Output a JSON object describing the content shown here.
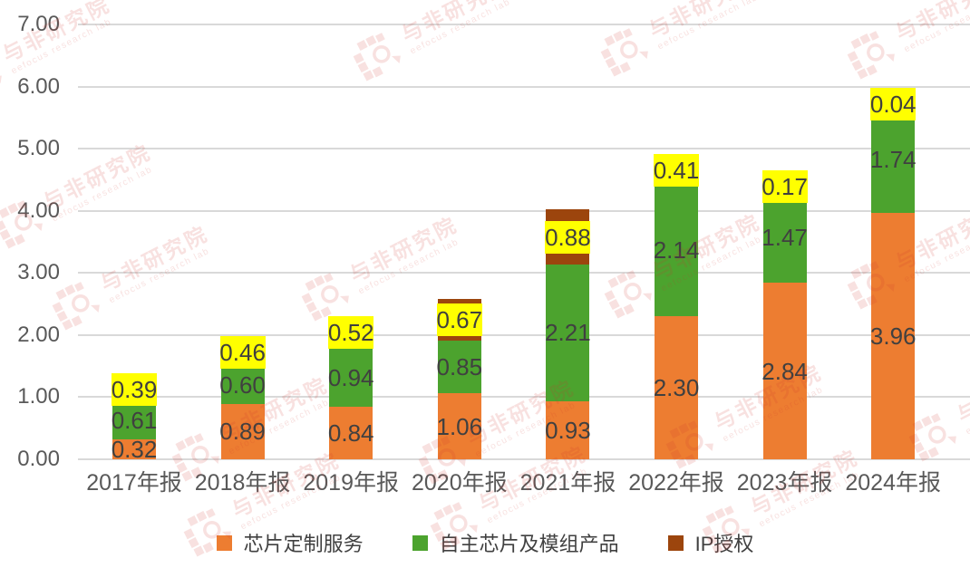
{
  "chart_data": {
    "type": "bar",
    "stacked": true,
    "title": "",
    "xlabel": "",
    "ylabel": "",
    "categories": [
      "2017年报",
      "2018年报",
      "2019年报",
      "2020年报",
      "2021年报",
      "2022年报",
      "2023年报",
      "2024年报"
    ],
    "series": [
      {
        "name": "芯片定制服务",
        "color": "#ED7D31",
        "label_style": "plain",
        "values": [
          0.32,
          0.89,
          0.84,
          1.06,
          0.93,
          2.3,
          2.84,
          3.96
        ]
      },
      {
        "name": "自主芯片及模组产品",
        "color": "#4CA32E",
        "label_style": "plain",
        "values": [
          0.61,
          0.6,
          0.94,
          0.85,
          2.21,
          2.14,
          1.47,
          1.74
        ]
      },
      {
        "name": "IP授权",
        "color": "#9C450D",
        "label_style": "highlight",
        "label_bg": "#FFFF00",
        "values": [
          0.39,
          0.46,
          0.52,
          0.67,
          0.88,
          0.41,
          0.17,
          0.04
        ]
      }
    ],
    "ylim": [
      0,
      7
    ],
    "yticks": [
      "0.00",
      "1.00",
      "2.00",
      "3.00",
      "4.00",
      "5.00",
      "6.00",
      "7.00"
    ],
    "value_decimals": 2,
    "grid": "horizontal",
    "legend_position": "bottom"
  },
  "watermark": {
    "brand": "与非研究院",
    "subtitle": "eefocus research lab"
  },
  "colors": {
    "background": "#FFFFFF",
    "gridline": "#D9D9D9",
    "axis_text": "#595959",
    "value_text": "#404040",
    "highlight_bg": "#FFFF00",
    "watermark": "rgba(205,55,45,0.15)"
  }
}
